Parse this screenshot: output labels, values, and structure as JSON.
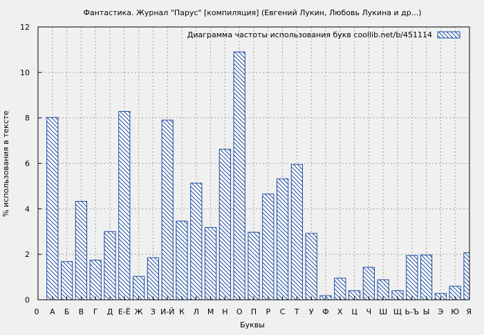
{
  "chart_data": {
    "type": "bar",
    "title": "Фантастика. Журнал \"Парус\"  [компиляция] (Евгений Лукин, Любовь Лукина и др...)",
    "xlabel": "Буквы",
    "ylabel": "% использования в тексте",
    "legend": {
      "label": "Диаграмма частоты использования букв  coollib.net/b/451114",
      "placement": "top-right"
    },
    "ylim": [
      0,
      12
    ],
    "yticks": [
      0,
      2,
      4,
      6,
      8,
      10,
      12
    ],
    "grid": true,
    "x_tick_labels": [
      "0",
      "А",
      "Б",
      "В",
      "Г",
      "Д",
      "Е-Ё",
      "Ж",
      "З",
      "И-Й",
      "К",
      "Л",
      "М",
      "Н",
      "О",
      "П",
      "Р",
      "С",
      "Т",
      "У",
      "Ф",
      "Х",
      "Ц",
      "Ч",
      "Ш",
      "Щ",
      "Ь-Ъ",
      "Ы",
      "Э",
      "Ю",
      "Я"
    ],
    "categories": [
      "А",
      "Б",
      "В",
      "Г",
      "Д",
      "Е-Ё",
      "Ж",
      "З",
      "И-Й",
      "К",
      "Л",
      "М",
      "Н",
      "О",
      "П",
      "Р",
      "С",
      "Т",
      "У",
      "Ф",
      "Х",
      "Ц",
      "Ч",
      "Ш",
      "Щ",
      "Ь-Ъ",
      "Ы",
      "Э",
      "Ю",
      "Я"
    ],
    "values": [
      8.02,
      1.68,
      4.33,
      1.74,
      3.0,
      8.28,
      1.03,
      1.85,
      7.9,
      3.46,
      5.13,
      3.18,
      6.62,
      10.9,
      2.97,
      4.65,
      5.32,
      5.95,
      2.92,
      0.18,
      0.95,
      0.4,
      1.43,
      0.88,
      0.4,
      1.95,
      1.97,
      0.28,
      0.6,
      2.07
    ],
    "colors": {
      "background": "#f0f0f0",
      "bar_stroke": "#1a4aa0",
      "hatch": "#1a4aa0",
      "bar_fill": "#ffffff",
      "grid": "#a0a0a0",
      "axis": "#000000"
    }
  }
}
